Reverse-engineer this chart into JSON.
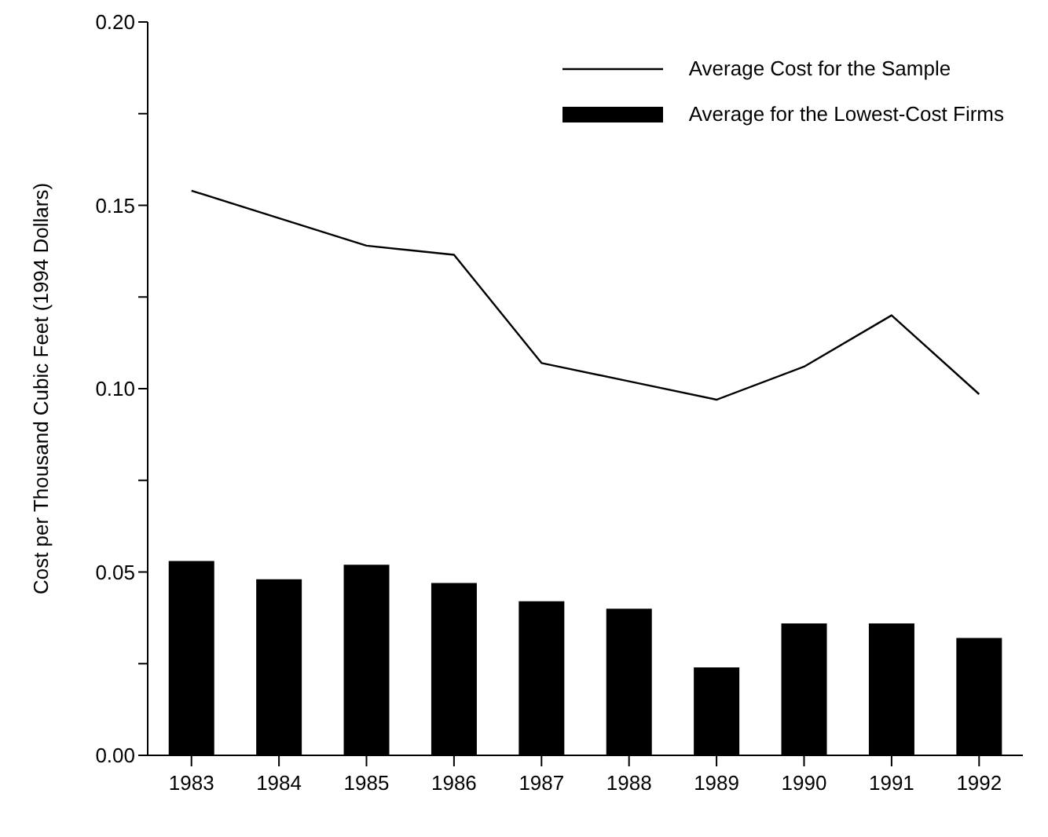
{
  "chart_data": {
    "type": "bar",
    "ylabel": "Cost per Thousand Cubic Feet (1994 Dollars)",
    "categories": [
      "1983",
      "1984",
      "1985",
      "1986",
      "1987",
      "1988",
      "1989",
      "1990",
      "1991",
      "1992"
    ],
    "series": [
      {
        "name": "Average Cost for the Sample",
        "type": "line",
        "color": "#000000",
        "values": [
          0.154,
          0.1465,
          0.139,
          0.1365,
          0.107,
          0.102,
          0.097,
          0.106,
          0.12,
          0.0985
        ]
      },
      {
        "name": "Average for the Lowest-Cost Firms",
        "color": "#000000",
        "values": [
          0.053,
          0.048,
          0.052,
          0.047,
          0.042,
          0.04,
          0.024,
          0.036,
          0.036,
          0.032
        ]
      }
    ],
    "ylim": [
      0,
      0.2
    ],
    "yticks": [
      {
        "value": 0,
        "label": "0.00"
      },
      {
        "value": 0.025,
        "label": null
      },
      0.05,
      {
        "value": 0.075,
        "label": null
      },
      {
        "value": 0.1,
        "label": "0.10"
      },
      {
        "value": 0.125,
        "label": null
      },
      0.15,
      {
        "value": 0.175,
        "label": null
      },
      {
        "value": 0.2,
        "label": "0.20"
      }
    ],
    "grid": false,
    "legend": "top right",
    "marker": "none",
    "line_style": "solid"
  }
}
